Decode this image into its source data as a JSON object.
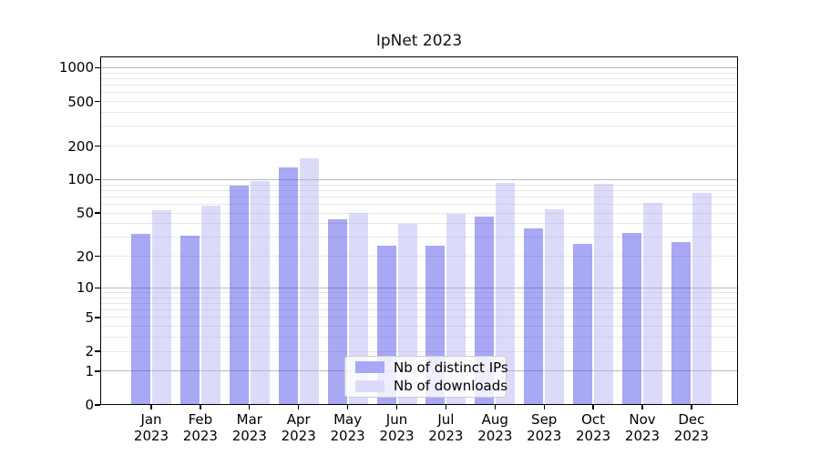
{
  "chart_data": {
    "type": "bar",
    "title": "IpNet 2023",
    "categories": [
      "Jan",
      "Feb",
      "Mar",
      "Apr",
      "May",
      "Jun",
      "Jul",
      "Aug",
      "Sep",
      "Oct",
      "Nov",
      "Dec"
    ],
    "year_suffix": "2023",
    "series": [
      {
        "name": "Nb of distinct IPs",
        "color": "rgba(62,62,231,0.45)",
        "swatch_color": "#a8a8f4",
        "values": [
          32,
          31,
          88,
          128,
          44,
          25,
          25,
          46,
          36,
          26,
          33,
          27
        ]
      },
      {
        "name": "Nb of downloads",
        "color": "rgba(175,175,242,0.45)",
        "swatch_color": "#dbdbf9",
        "values": [
          53,
          58,
          97,
          154,
          50,
          40,
          49,
          94,
          54,
          92,
          62,
          76
        ]
      }
    ],
    "y_axis": {
      "scale": "log1p",
      "min": 0,
      "max": 1260,
      "tick_labels": [
        1000,
        500,
        200,
        100,
        50,
        20,
        10,
        5,
        2,
        1,
        0
      ],
      "major_gridlines": [
        1,
        10,
        100,
        1000
      ],
      "minor_gridlines": [
        2,
        3,
        4,
        5,
        6,
        7,
        8,
        9,
        20,
        30,
        40,
        50,
        60,
        70,
        80,
        90,
        200,
        300,
        400,
        500,
        600,
        700,
        800,
        900
      ]
    },
    "x_axis": {
      "tick_labels_two_line": true
    },
    "legend": {
      "position": "lower-center",
      "entries": [
        "Nb of distinct IPs",
        "Nb of downloads"
      ]
    },
    "grid": true
  },
  "colors": {
    "background": "#ffffff",
    "major_grid": "#bbbbbb",
    "minor_grid": "#e8e8e8",
    "spine": "#000000",
    "text": "#000000",
    "legend_border": "#cccccc",
    "legend_background": "rgba(255,255,255,0.8)"
  }
}
